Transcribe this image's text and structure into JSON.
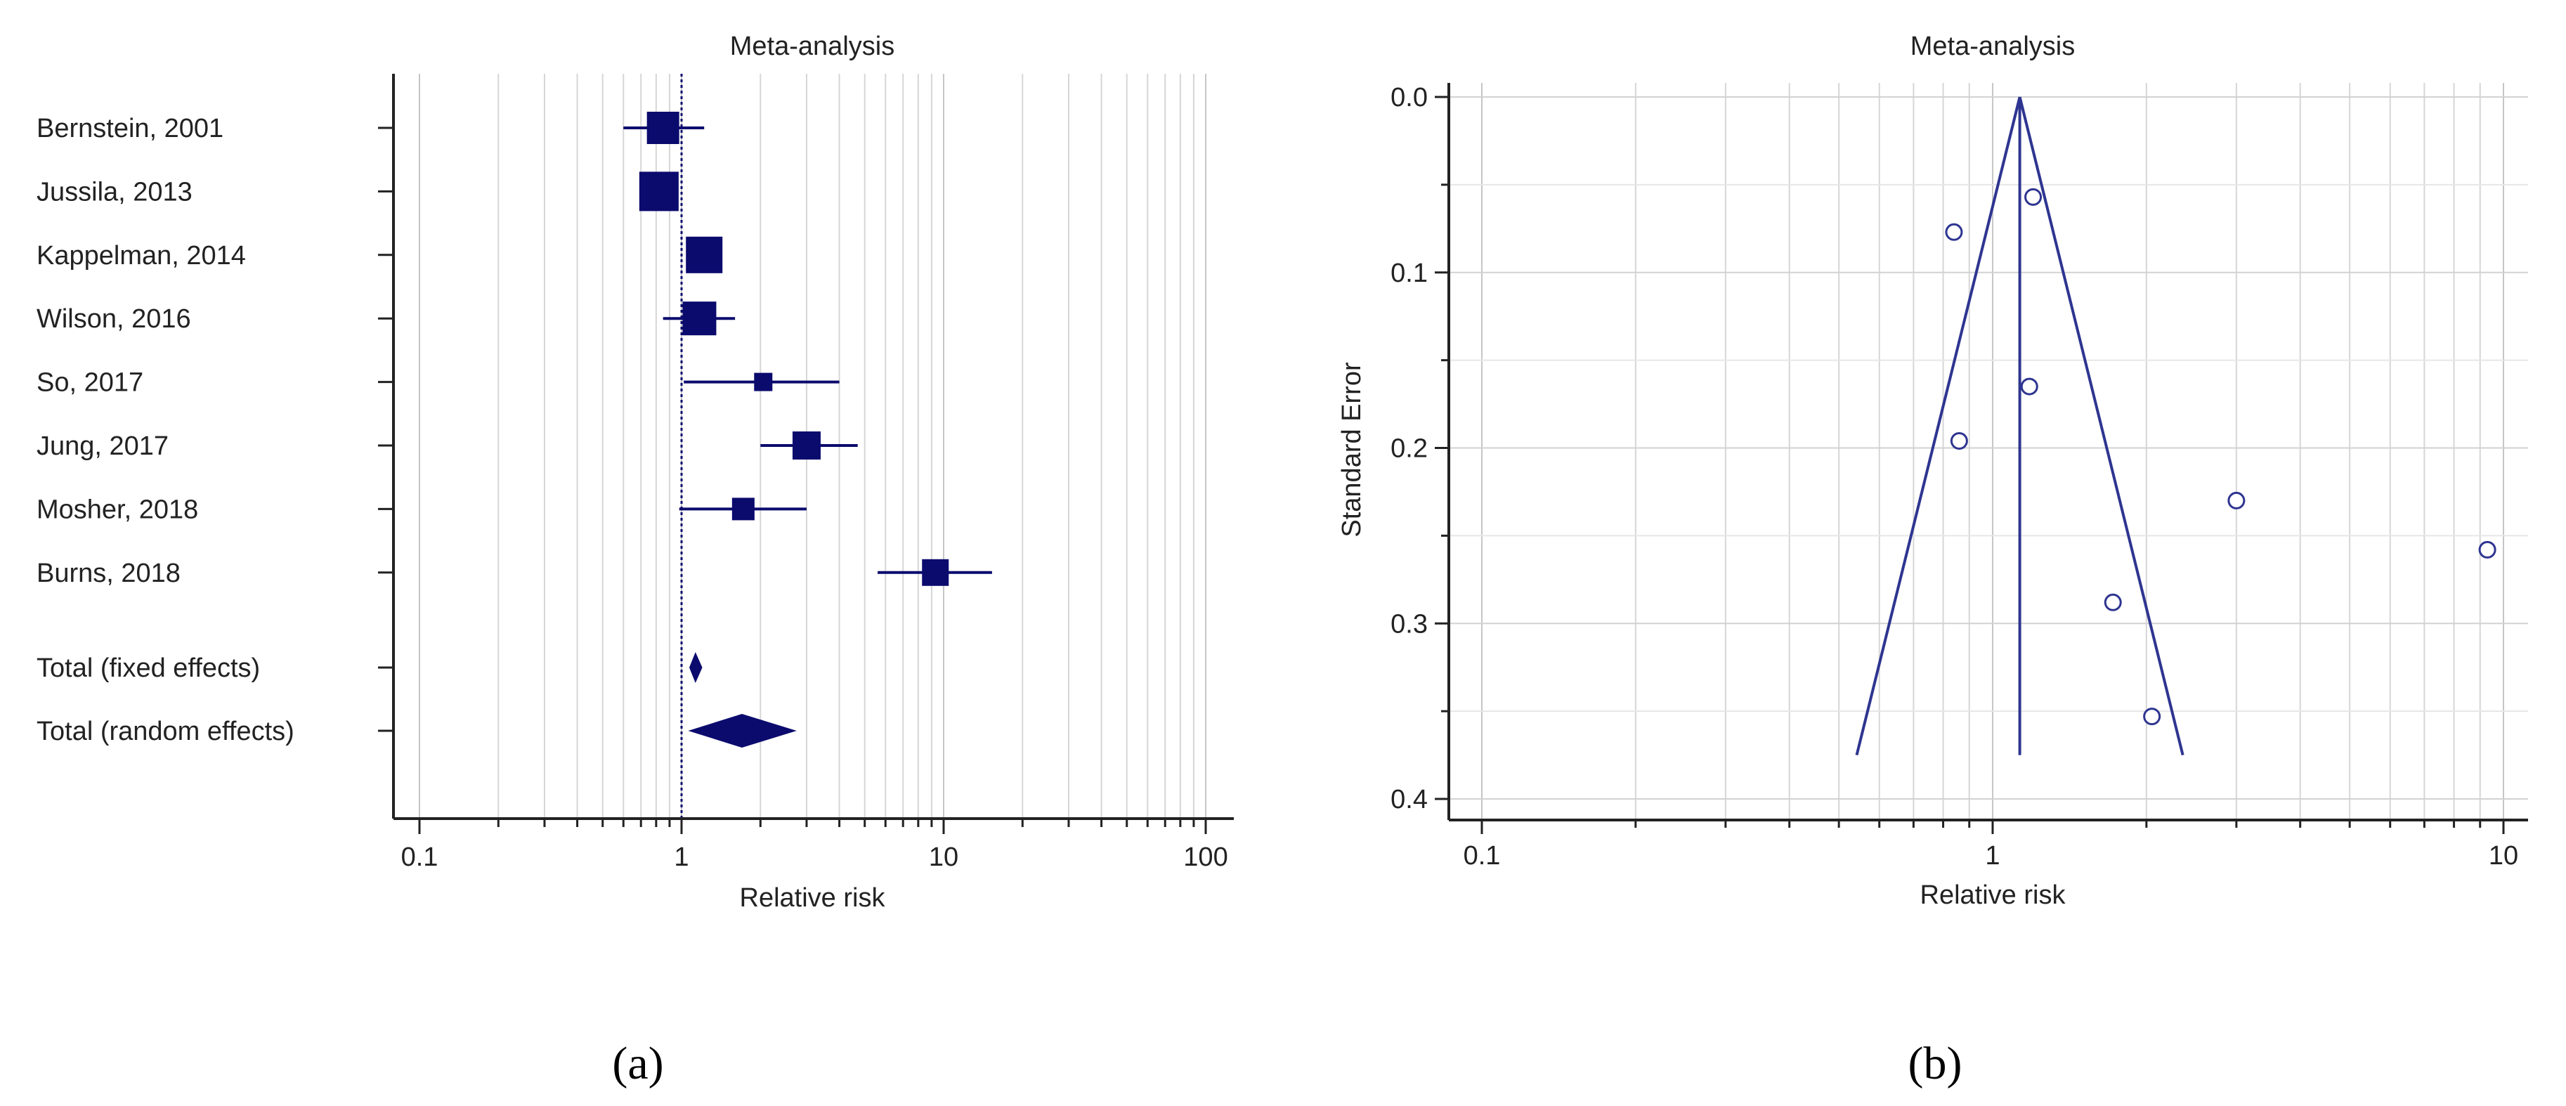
{
  "chart_data": [
    {
      "type": "forest",
      "panel_label": "(a)",
      "title": "Meta-analysis",
      "xlabel": "Relative risk",
      "ylabel": "",
      "x_scale": "log",
      "xlim": [
        0.1,
        100
      ],
      "x_ticks": [
        0.1,
        1,
        10,
        100
      ],
      "x_tick_labels": [
        "0.1",
        "1",
        "10",
        "100"
      ],
      "grid": "vertical",
      "reference_line": 1,
      "marker_color": "#0b0b6e",
      "studies": [
        {
          "label": "Bernstein, 2001",
          "rr": 0.85,
          "ci": [
            0.6,
            1.22
          ]
        },
        {
          "label": "Jussila, 2013",
          "rr": 0.82,
          "ci": [
            0.7,
            0.97
          ]
        },
        {
          "label": "Kappelman, 2014",
          "rr": 1.22,
          "ci": [
            1.05,
            1.42
          ]
        },
        {
          "label": "Wilson, 2016",
          "rr": 1.17,
          "ci": [
            0.85,
            1.6
          ]
        },
        {
          "label": "So, 2017",
          "rr": 2.05,
          "ci": [
            1.02,
            4.0
          ]
        },
        {
          "label": "Jung, 2017",
          "rr": 3.0,
          "ci": [
            2.0,
            4.7
          ]
        },
        {
          "label": "Mosher, 2018",
          "rr": 1.72,
          "ci": [
            0.98,
            3.0
          ]
        },
        {
          "label": "Burns, 2018",
          "rr": 9.3,
          "ci": [
            5.6,
            15.3
          ]
        }
      ],
      "totals": [
        {
          "label": "Total (fixed effects)",
          "rr": 1.13,
          "ci": [
            1.07,
            1.2
          ]
        },
        {
          "label": "Total (random effects)",
          "rr": 1.7,
          "ci": [
            1.06,
            2.75
          ]
        }
      ]
    },
    {
      "type": "scatter",
      "subtype": "funnel",
      "panel_label": "(b)",
      "title": "Meta-analysis",
      "xlabel": "Relative risk",
      "ylabel": "Standard Error",
      "x_scale": "log",
      "xlim": [
        0.1,
        11
      ],
      "ylim": [
        0.41,
        0
      ],
      "y_inverted": true,
      "x_ticks": [
        0.1,
        1,
        10
      ],
      "x_tick_labels": [
        "0.1",
        "1",
        "10"
      ],
      "y_ticks": [
        0.0,
        0.1,
        0.2,
        0.3,
        0.4
      ],
      "y_tick_labels": [
        "0.0",
        "0.1",
        "0.2",
        "0.3",
        "0.4"
      ],
      "grid": "both",
      "line_color": "#2e3590",
      "pooled_estimate": 1.13,
      "funnel_se_max": 0.375,
      "points": [
        {
          "x": 1.2,
          "y": 0.057
        },
        {
          "x": 0.84,
          "y": 0.077
        },
        {
          "x": 1.18,
          "y": 0.165
        },
        {
          "x": 0.86,
          "y": 0.196
        },
        {
          "x": 3.0,
          "y": 0.23
        },
        {
          "x": 9.3,
          "y": 0.258
        },
        {
          "x": 1.72,
          "y": 0.288
        },
        {
          "x": 2.05,
          "y": 0.353
        }
      ]
    }
  ]
}
